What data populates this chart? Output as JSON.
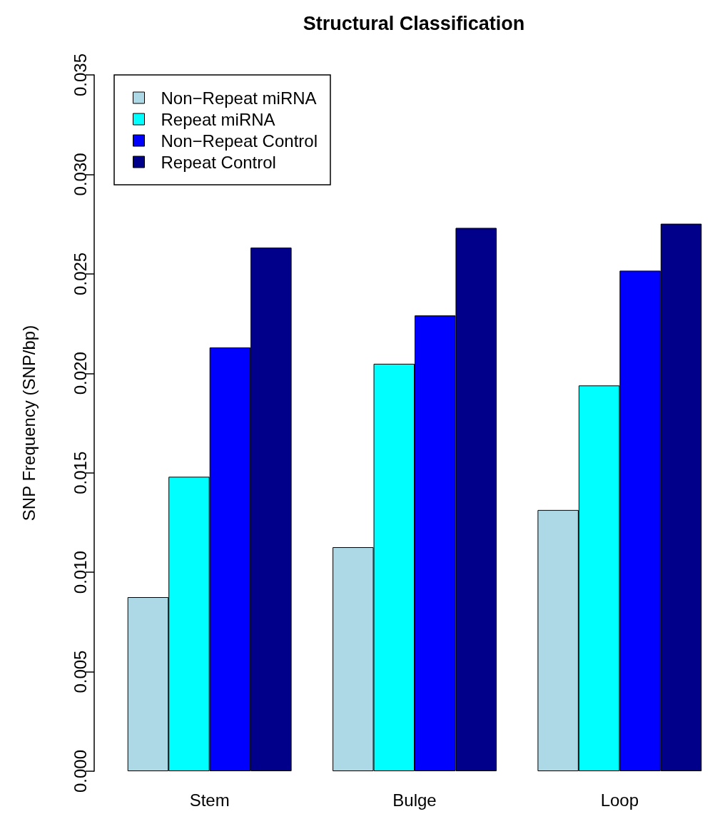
{
  "chart_data": {
    "type": "bar",
    "title": "Structural Classification",
    "ylabel": "SNP Frequency (SNP/bp)",
    "categories": [
      "Stem",
      "Bulge",
      "Loop"
    ],
    "series": [
      {
        "name": "Non−Repeat miRNA",
        "color": "#add8e6",
        "values": [
          0.00875,
          0.01126,
          0.01313
        ]
      },
      {
        "name": "Repeat miRNA",
        "color": "#00ffff",
        "values": [
          0.0148,
          0.02048,
          0.01939
        ]
      },
      {
        "name": "Non−Repeat Control",
        "color": "#0000ff",
        "values": [
          0.0213,
          0.02291,
          0.02516
        ]
      },
      {
        "name": "Repeat Control",
        "color": "#00008b",
        "values": [
          0.02632,
          0.02731,
          0.02752
        ]
      }
    ],
    "ylim": [
      0,
      0.035
    ],
    "yticks": [
      {
        "value": 0,
        "label": "0.000"
      },
      {
        "value": 0.005,
        "label": "0.005"
      },
      {
        "value": 0.01,
        "label": "0.010"
      },
      {
        "value": 0.015,
        "label": "0.015"
      },
      {
        "value": 0.02,
        "label": "0.020"
      },
      {
        "value": 0.025,
        "label": "0.025"
      },
      {
        "value": 0.03,
        "label": "0.030"
      },
      {
        "value": 0.035,
        "label": "0.035"
      }
    ],
    "grid": false,
    "legend": "top left"
  }
}
